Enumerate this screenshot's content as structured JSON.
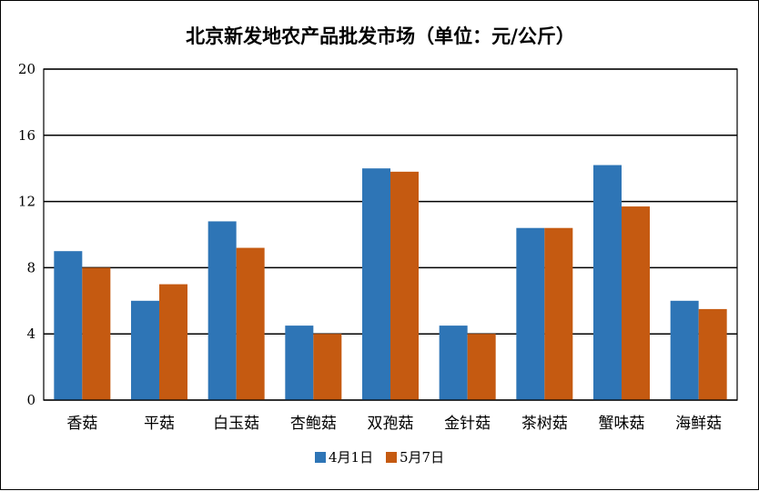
{
  "chart_data": {
    "type": "bar",
    "title": "北京新发地农产品批发市场（单位：元/公斤）",
    "xlabel": "",
    "ylabel": "",
    "categories": [
      "香菇",
      "平菇",
      "白玉菇",
      "杏鲍菇",
      "双孢菇",
      "金针菇",
      "茶树菇",
      "蟹味菇",
      "海鲜菇"
    ],
    "series": [
      {
        "name": "4月1日",
        "color": "#2e75b6",
        "values": [
          9.0,
          6.0,
          10.8,
          4.5,
          14.0,
          4.5,
          10.4,
          14.2,
          6.0
        ]
      },
      {
        "name": "5月7日",
        "color": "#c55a11",
        "values": [
          8.0,
          7.0,
          9.2,
          4.0,
          13.8,
          4.0,
          10.4,
          11.7,
          5.5
        ]
      }
    ],
    "ylim": [
      0,
      20
    ],
    "yticks": [
      0,
      4,
      8,
      12,
      16,
      20
    ],
    "grid": true,
    "legend_position": "bottom"
  }
}
